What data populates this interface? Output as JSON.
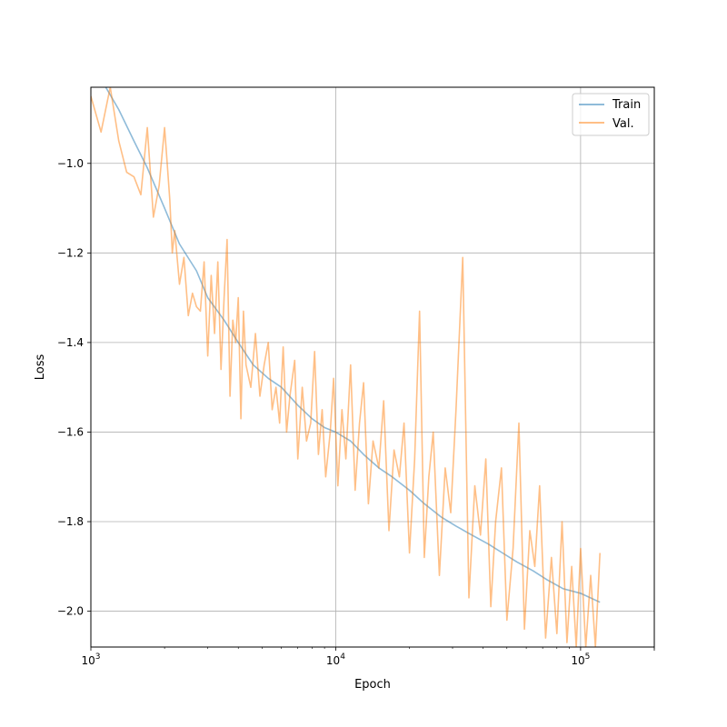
{
  "chart_data": {
    "type": "line",
    "title": "",
    "xlabel": "Epoch",
    "ylabel": "Loss",
    "xscale": "log",
    "xlim": [
      1000,
      200000
    ],
    "ylim": [
      -2.08,
      -0.83
    ],
    "grid": true,
    "legend_position": "top-right",
    "xticks": [
      {
        "value": 1000,
        "base": "10",
        "exp": "3"
      },
      {
        "value": 10000,
        "base": "10",
        "exp": "4"
      },
      {
        "value": 100000,
        "base": "10",
        "exp": "5"
      }
    ],
    "yticks": [
      {
        "value": -1.0,
        "label": "−1.0"
      },
      {
        "value": -1.2,
        "label": "−1.2"
      },
      {
        "value": -1.4,
        "label": "−1.4"
      },
      {
        "value": -1.6,
        "label": "−1.6"
      },
      {
        "value": -1.8,
        "label": "−1.8"
      },
      {
        "value": -2.0,
        "label": "−2.0"
      }
    ],
    "series": [
      {
        "name": "Train",
        "color": "#1f77b4",
        "opacity": 0.5,
        "x": [
          1150,
          1300,
          1500,
          1700,
          2000,
          2300,
          2700,
          3000,
          3500,
          4000,
          4600,
          5300,
          6000,
          7000,
          8000,
          9000,
          10000,
          11500,
          13000,
          15000,
          17000,
          20000,
          23000,
          27000,
          31000,
          36000,
          42000,
          48000,
          55000,
          64000,
          73000,
          85000,
          100000,
          120000
        ],
        "y": [
          -0.83,
          -0.88,
          -0.95,
          -1.01,
          -1.1,
          -1.18,
          -1.24,
          -1.3,
          -1.35,
          -1.4,
          -1.45,
          -1.48,
          -1.5,
          -1.54,
          -1.57,
          -1.59,
          -1.6,
          -1.62,
          -1.65,
          -1.68,
          -1.7,
          -1.73,
          -1.76,
          -1.79,
          -1.81,
          -1.83,
          -1.85,
          -1.87,
          -1.89,
          -1.91,
          -1.93,
          -1.95,
          -1.96,
          -1.98
        ]
      },
      {
        "name": "Val.",
        "color": "#ff7f0e",
        "opacity": 0.5,
        "x": [
          1000,
          1100,
          1200,
          1300,
          1400,
          1500,
          1600,
          1700,
          1800,
          1900,
          2000,
          2050,
          2100,
          2150,
          2200,
          2300,
          2400,
          2500,
          2600,
          2700,
          2800,
          2900,
          3000,
          3100,
          3200,
          3300,
          3400,
          3500,
          3600,
          3700,
          3800,
          3900,
          4000,
          4100,
          4200,
          4300,
          4500,
          4700,
          4900,
          5100,
          5300,
          5500,
          5700,
          5900,
          6100,
          6300,
          6500,
          6800,
          7000,
          7300,
          7600,
          7900,
          8200,
          8500,
          8800,
          9100,
          9500,
          9800,
          10200,
          10600,
          11000,
          11500,
          12000,
          12500,
          13000,
          13600,
          14200,
          15000,
          15700,
          16500,
          17300,
          18200,
          19000,
          20000,
          21000,
          22000,
          23000,
          24000,
          25000,
          26500,
          28000,
          29500,
          31000,
          33000,
          35000,
          37000,
          39000,
          41000,
          43000,
          45000,
          47500,
          50000,
          53000,
          56000,
          59000,
          62000,
          65000,
          68000,
          72000,
          76000,
          80000,
          84000,
          88000,
          92000,
          96000,
          100000,
          105000,
          110000,
          115000,
          120000
        ],
        "y": [
          -0.85,
          -0.93,
          -0.83,
          -0.95,
          -1.02,
          -1.03,
          -1.07,
          -0.92,
          -1.12,
          -1.05,
          -0.92,
          -1.0,
          -1.08,
          -1.2,
          -1.15,
          -1.27,
          -1.21,
          -1.34,
          -1.29,
          -1.32,
          -1.33,
          -1.22,
          -1.43,
          -1.25,
          -1.38,
          -1.22,
          -1.46,
          -1.3,
          -1.17,
          -1.52,
          -1.35,
          -1.4,
          -1.3,
          -1.57,
          -1.33,
          -1.45,
          -1.5,
          -1.38,
          -1.52,
          -1.45,
          -1.4,
          -1.55,
          -1.5,
          -1.58,
          -1.41,
          -1.6,
          -1.52,
          -1.44,
          -1.66,
          -1.5,
          -1.62,
          -1.58,
          -1.42,
          -1.65,
          -1.55,
          -1.7,
          -1.6,
          -1.48,
          -1.72,
          -1.55,
          -1.66,
          -1.45,
          -1.73,
          -1.58,
          -1.49,
          -1.76,
          -1.62,
          -1.68,
          -1.53,
          -1.82,
          -1.64,
          -1.7,
          -1.58,
          -1.87,
          -1.66,
          -1.33,
          -1.88,
          -1.7,
          -1.6,
          -1.92,
          -1.68,
          -1.78,
          -1.55,
          -1.21,
          -1.97,
          -1.72,
          -1.83,
          -1.66,
          -1.99,
          -1.8,
          -1.68,
          -2.02,
          -1.86,
          -1.58,
          -2.04,
          -1.82,
          -1.9,
          -1.72,
          -2.06,
          -1.88,
          -2.05,
          -1.8,
          -2.07,
          -1.9,
          -2.08,
          -1.86,
          -2.08,
          -1.92,
          -2.08,
          -1.87
        ]
      }
    ]
  }
}
